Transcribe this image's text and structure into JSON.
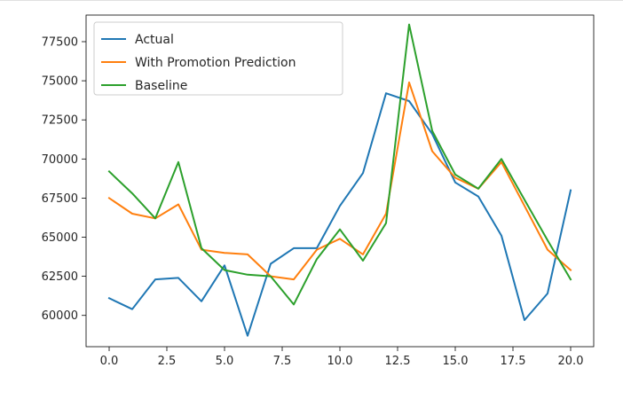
{
  "chart_data": {
    "type": "line",
    "title": "",
    "xlabel": "",
    "ylabel": "",
    "x": [
      0,
      1,
      2,
      3,
      4,
      5,
      6,
      7,
      8,
      9,
      10,
      11,
      12,
      13,
      14,
      15,
      16,
      17,
      18,
      19,
      20
    ],
    "xlim": [
      -1,
      21
    ],
    "ylim": [
      58000,
      79200
    ],
    "xticks": [
      0.0,
      2.5,
      5.0,
      7.5,
      10.0,
      12.5,
      15.0,
      17.5,
      20.0
    ],
    "xtick_labels": [
      "0.0",
      "2.5",
      "5.0",
      "7.5",
      "10.0",
      "12.5",
      "15.0",
      "17.5",
      "20.0"
    ],
    "yticks": [
      60000,
      62500,
      65000,
      67500,
      70000,
      72500,
      75000,
      77500
    ],
    "ytick_labels": [
      "60000",
      "62500",
      "65000",
      "67500",
      "70000",
      "72500",
      "75000",
      "77500"
    ],
    "grid": false,
    "legend_position": "top-left",
    "series": [
      {
        "name": "Actual",
        "color": "#1f77b4",
        "values": [
          61100,
          60400,
          62300,
          62400,
          60900,
          63200,
          58700,
          63300,
          64300,
          64300,
          67000,
          69100,
          74200,
          73700,
          71600,
          68500,
          67600,
          65100,
          59700,
          61400,
          68000
        ]
      },
      {
        "name": "With Promotion Prediction",
        "color": "#ff7f0e",
        "values": [
          67500,
          66500,
          66200,
          67100,
          64200,
          64000,
          63900,
          62500,
          62300,
          64200,
          64900,
          63900,
          66500,
          74900,
          70500,
          68800,
          68100,
          69800,
          67000,
          64200,
          62900
        ]
      },
      {
        "name": "Baseline",
        "color": "#2ca02c",
        "values": [
          69200,
          67800,
          66200,
          69800,
          64300,
          62900,
          62600,
          62500,
          60700,
          63600,
          65500,
          63500,
          65900,
          78600,
          71800,
          69000,
          68100,
          70000,
          67400,
          64800,
          62300
        ]
      }
    ]
  }
}
